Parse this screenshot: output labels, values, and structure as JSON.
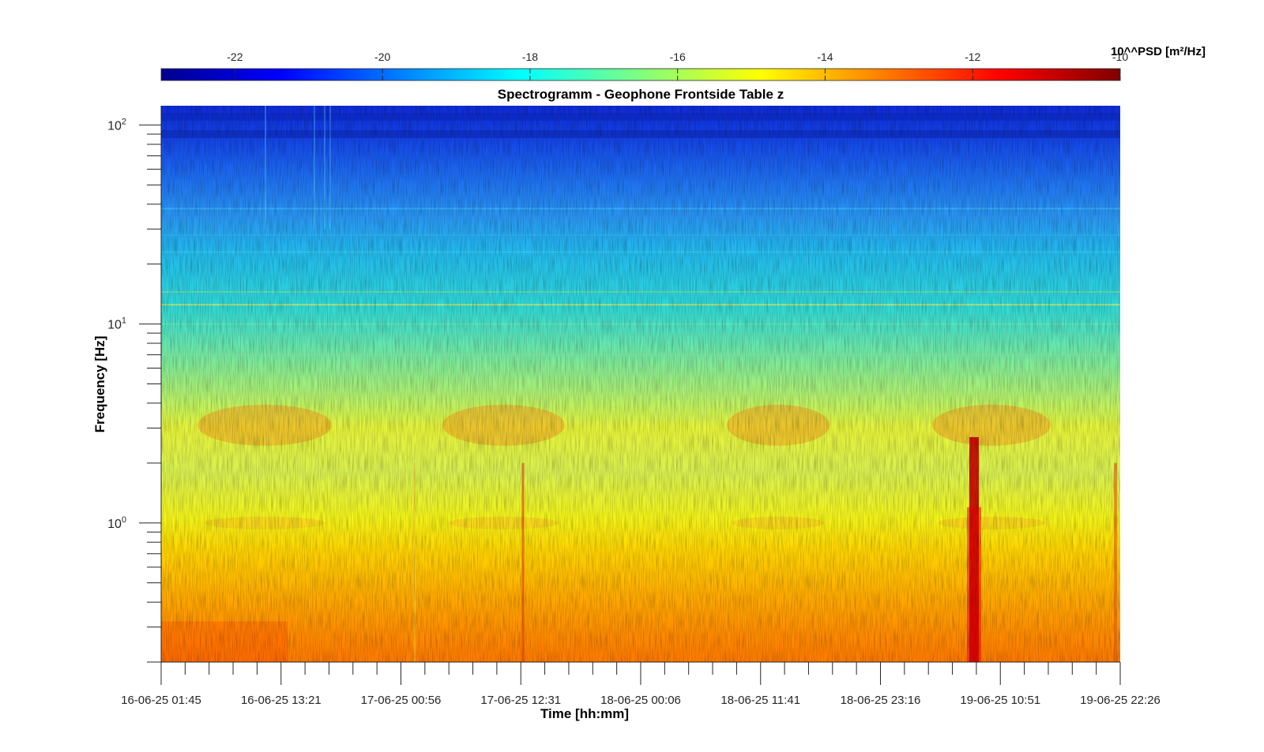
{
  "chart_data": {
    "type": "heatmap",
    "title": "Spectrogramm - Geophone Frontside Table z",
    "xlabel": "Time [hh:mm]",
    "ylabel": "Frequency [Hz]",
    "yscale": "log",
    "ylim": [
      0.2,
      125
    ],
    "x_tick_labels": [
      "16-06-25 01:45",
      "16-06-25 13:21",
      "17-06-25 00:56",
      "17-06-25 12:31",
      "18-06-25 00:06",
      "18-06-25 11:41",
      "18-06-25 23:16",
      "19-06-25 10:51",
      "19-06-25 22:26"
    ],
    "y_ticks": [
      {
        "value": 1,
        "base": "10",
        "exp": "0"
      },
      {
        "value": 10,
        "base": "10",
        "exp": "1"
      },
      {
        "value": 100,
        "base": "10",
        "exp": "2"
      }
    ],
    "colorbar": {
      "label": "10^^PSD [m²/Hz]",
      "range": [
        -23,
        -10
      ],
      "tick_labels": [
        "-22",
        "-20",
        "-18",
        "-16",
        "-14",
        "-12",
        "-10"
      ],
      "colormap": "jet"
    },
    "grid": false
  }
}
